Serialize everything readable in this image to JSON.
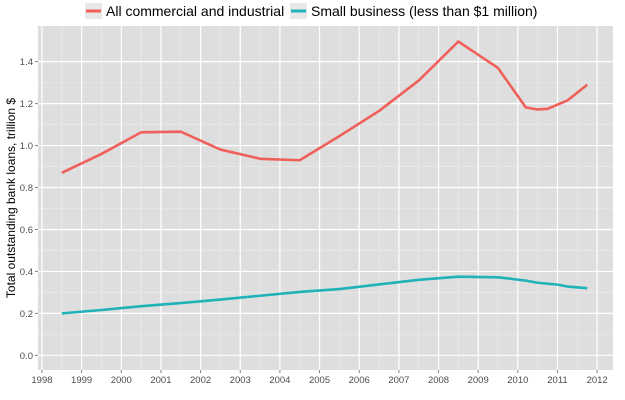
{
  "chart_data": {
    "type": "line",
    "ylabel": "Total outstanding bank loans, trillion $",
    "xlim": [
      1997.9,
      2012.4
    ],
    "ylim": [
      -0.07,
      1.57
    ],
    "x_ticks": [
      1998,
      1999,
      2000,
      2001,
      2002,
      2003,
      2004,
      2005,
      2006,
      2007,
      2008,
      2009,
      2010,
      2011,
      2012
    ],
    "y_ticks": [
      0.0,
      0.2,
      0.4,
      0.6,
      0.8,
      1.0,
      1.2,
      1.4
    ],
    "y_tick_labels": [
      "0.0",
      "0.2",
      "0.4",
      "0.6",
      "0.8",
      "1.0",
      "1.2",
      "1.4"
    ],
    "grid": true,
    "legend_position": "top",
    "panel_color": "#dedede",
    "series": [
      {
        "name": "All commercial and industrial",
        "color": "#f0605a",
        "points": [
          [
            1998.5,
            0.87
          ],
          [
            1999.5,
            0.96
          ],
          [
            2000.5,
            1.063
          ],
          [
            2001.5,
            1.066
          ],
          [
            2002.5,
            0.981
          ],
          [
            2003.5,
            0.937
          ],
          [
            2004.5,
            0.93
          ],
          [
            2005.5,
            1.045
          ],
          [
            2006.5,
            1.165
          ],
          [
            2007.5,
            1.31
          ],
          [
            2008.5,
            1.496
          ],
          [
            2009.5,
            1.37
          ],
          [
            2010.2,
            1.182
          ],
          [
            2010.5,
            1.172
          ],
          [
            2010.75,
            1.175
          ],
          [
            2011.25,
            1.215
          ],
          [
            2011.75,
            1.29
          ]
        ]
      },
      {
        "name": "Small business (less than $1 million)",
        "color": "#1fb2b8",
        "points": [
          [
            1998.5,
            0.2
          ],
          [
            1999.5,
            0.216
          ],
          [
            2000.5,
            0.234
          ],
          [
            2001.5,
            0.249
          ],
          [
            2002.5,
            0.266
          ],
          [
            2003.5,
            0.284
          ],
          [
            2004.5,
            0.302
          ],
          [
            2005.5,
            0.316
          ],
          [
            2006.5,
            0.338
          ],
          [
            2007.5,
            0.36
          ],
          [
            2008.5,
            0.375
          ],
          [
            2009.5,
            0.372
          ],
          [
            2010.2,
            0.356
          ],
          [
            2010.5,
            0.346
          ],
          [
            2011.0,
            0.337
          ],
          [
            2011.25,
            0.328
          ],
          [
            2011.75,
            0.32
          ]
        ]
      }
    ]
  }
}
